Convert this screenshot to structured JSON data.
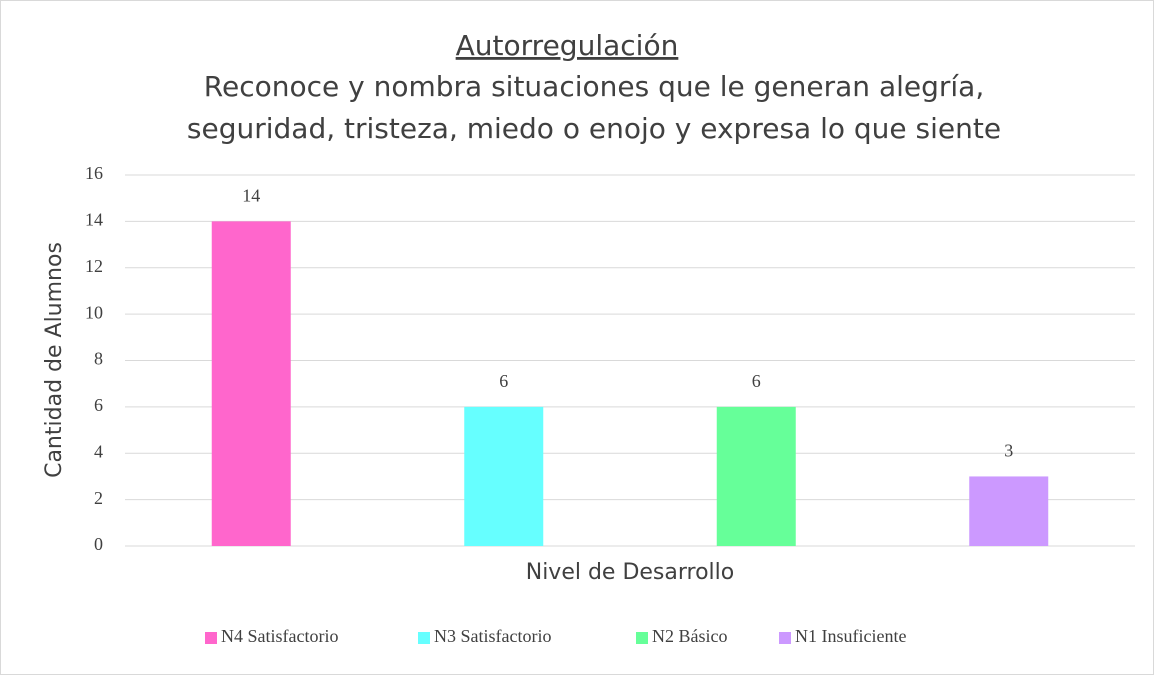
{
  "chart_data": {
    "type": "bar",
    "title": "Autorregulación",
    "subtitle": [
      "Reconoce y nombra situaciones que le generan alegría,",
      "seguridad, tristeza, miedo o enojo y expresa lo que siente"
    ],
    "x_label": "Nivel de Desarrollo",
    "y_label": "Cantidad de Alumnos",
    "series": [
      {
        "name": "N4 Satisfactorio",
        "color": "#ff66cc",
        "values": [
          14
        ]
      },
      {
        "name": "N3 Satisfactorio",
        "color": "#66ffff",
        "values": [
          6
        ]
      },
      {
        "name": "N2 Básico",
        "color": "#66ff99",
        "values": [
          6
        ]
      },
      {
        "name": "N1 Insuficiente",
        "color": "#cc99ff",
        "values": [
          3
        ]
      }
    ],
    "ylim": [
      0,
      16
    ],
    "yticks": [
      0,
      2,
      4,
      6,
      8,
      10,
      12,
      14,
      16
    ],
    "grid": true,
    "legend": "bottom"
  }
}
